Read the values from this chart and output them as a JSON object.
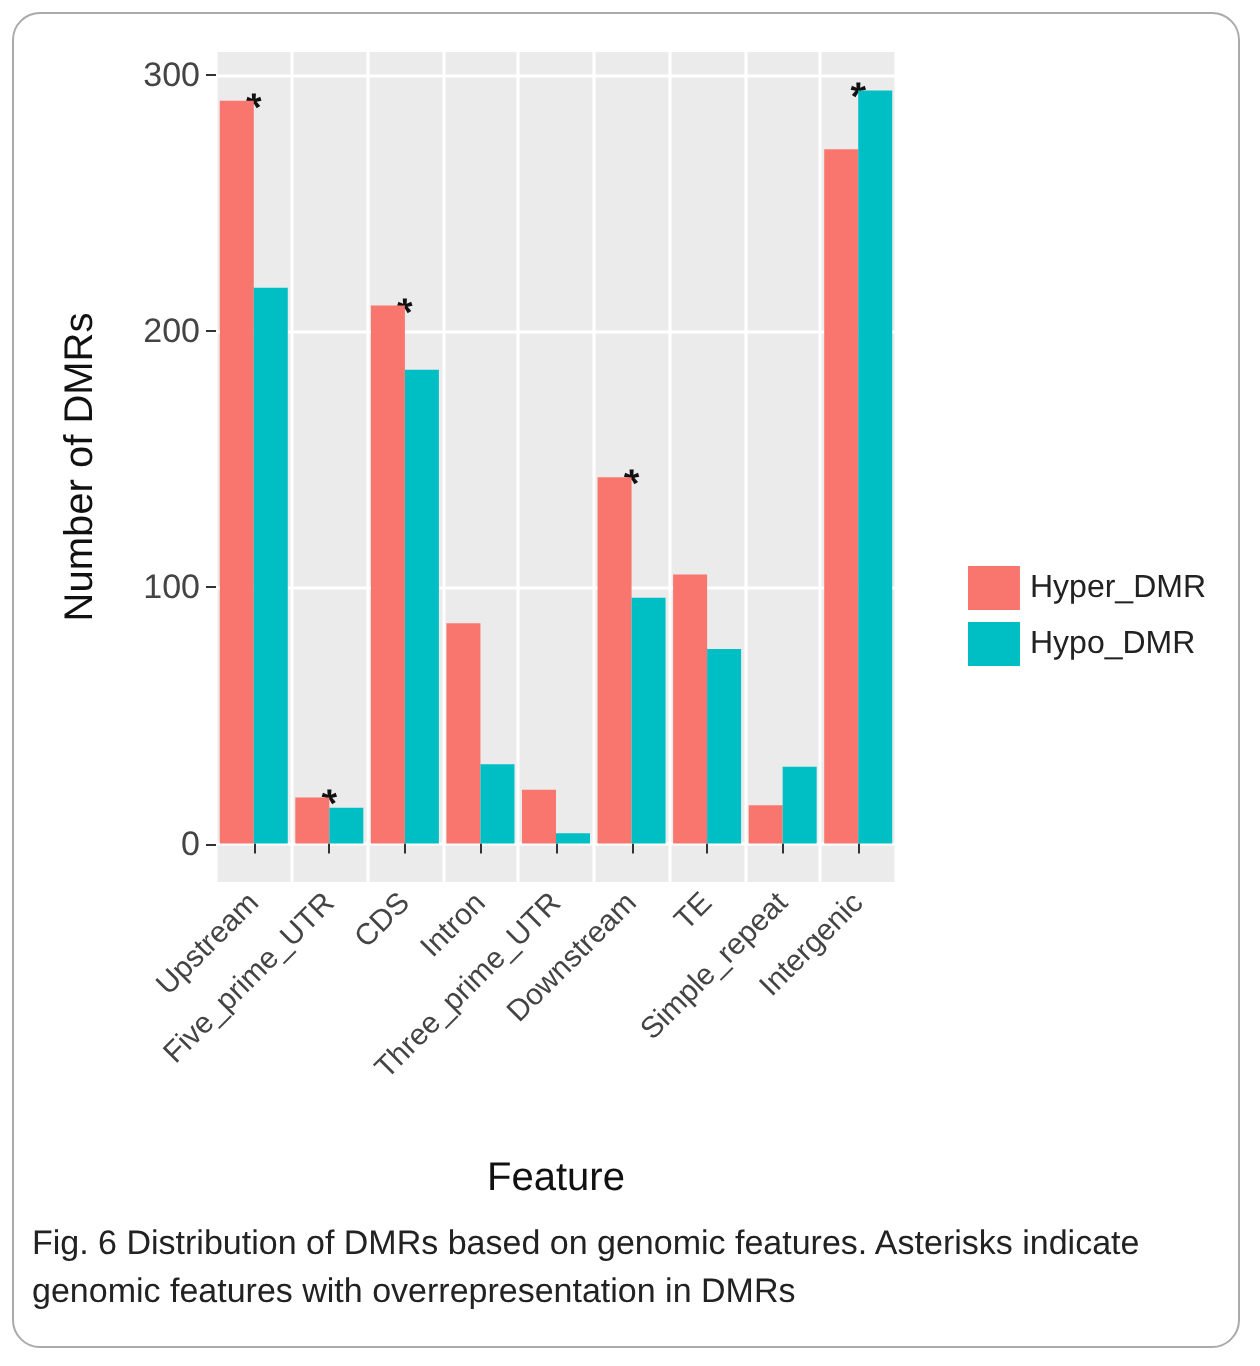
{
  "chart_data": {
    "type": "bar",
    "xlabel": "Feature",
    "ylabel": "Number of DMRs",
    "categories": [
      "Upstream",
      "Five_prime_UTR",
      "CDS",
      "Intron",
      "Three_prime_UTR",
      "Downstream",
      "TE",
      "Simple_repeat",
      "Intergenic"
    ],
    "series": [
      {
        "name": "Hyper_DMR",
        "color": "#f8766d",
        "values": [
          290,
          18,
          210,
          86,
          21,
          143,
          105,
          15,
          271
        ]
      },
      {
        "name": "Hypo_DMR",
        "color": "#00bfc4",
        "values": [
          217,
          14,
          185,
          31,
          4,
          96,
          76,
          30,
          294
        ]
      }
    ],
    "ylim": [
      -15,
      309
    ],
    "yticks": [
      0,
      100,
      200,
      300
    ],
    "grid": true,
    "legend": "right",
    "annotations": [
      {
        "text": "*",
        "x": "Upstream",
        "y": 290
      },
      {
        "text": "*",
        "x": "Five_prime_UTR",
        "y": 18
      },
      {
        "text": "*",
        "x": "CDS",
        "y": 210
      },
      {
        "text": "*",
        "x": "Downstream",
        "y": 143
      },
      {
        "text": "*",
        "x": "Intergenic",
        "y": 294
      },
      "Fig. 6 Distribution of DMRs based on genomic features. Asterisks indicate genomic features with overrepresentation in DMRs"
    ]
  }
}
